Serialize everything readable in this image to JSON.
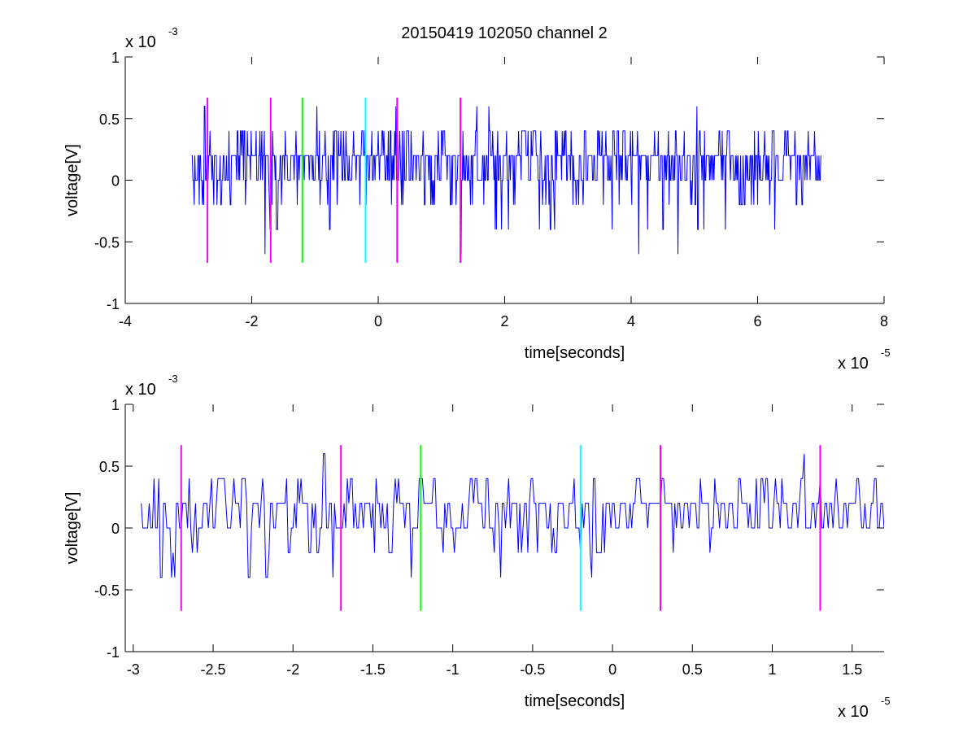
{
  "figure": {
    "title": "20150419 102050 channel 2"
  },
  "chart_data": [
    {
      "type": "line",
      "title": "20150419 102050 channel 2",
      "xlabel": "time[seconds]",
      "ylabel": "voltage[V]",
      "x_exponent_base": "x 10",
      "x_exponent_power": "-5",
      "y_exponent_base": "x 10",
      "y_exponent_power": "-3",
      "xlim": [
        -4e-05,
        8e-05
      ],
      "ylim": [
        -0.001,
        0.001
      ],
      "x_ticks": [
        -4e-05,
        -2e-05,
        0,
        2e-05,
        4e-05,
        6e-05,
        8e-05
      ],
      "x_tick_labels": [
        "-4",
        "-2",
        "0",
        "2",
        "4",
        "6",
        "8"
      ],
      "y_ticks": [
        -0.001,
        -0.0005,
        0,
        0.0005,
        0.001
      ],
      "y_tick_labels": [
        "-1",
        "-0.5",
        "0",
        "0.5",
        "1"
      ],
      "grid": false,
      "trace": {
        "color": "#0000ff",
        "x_start": -2.95e-05,
        "x_end": 7e-05,
        "levels_mV": [
          -0.6,
          -0.4,
          -0.2,
          0,
          0.2,
          0.4,
          0.6
        ],
        "typical_level_mV": 0.2
      },
      "markers": [
        {
          "x": -2.7e-05,
          "color": "#ff00ff",
          "y_range": [
            -0.00067,
            0.00067
          ]
        },
        {
          "x": -1.7e-05,
          "color": "#ff00ff",
          "y_range": [
            -0.00067,
            0.00067
          ]
        },
        {
          "x": -1.2e-05,
          "color": "#00ff00",
          "y_range": [
            -0.00067,
            0.00067
          ]
        },
        {
          "x": -2e-06,
          "color": "#00ffff",
          "y_range": [
            -0.00067,
            0.00067
          ]
        },
        {
          "x": 3e-06,
          "color": "#ff00ff",
          "y_range": [
            -0.00067,
            0.00067
          ]
        },
        {
          "x": 1.3e-05,
          "color": "#ff00ff",
          "y_range": [
            -0.00067,
            0.00067
          ]
        }
      ]
    },
    {
      "type": "line",
      "title": "",
      "xlabel": "time[seconds]",
      "ylabel": "voltage[V]",
      "x_exponent_base": "x 10",
      "x_exponent_power": "-5",
      "y_exponent_base": "x 10",
      "y_exponent_power": "-3",
      "xlim": [
        -3.05e-05,
        1.7e-05
      ],
      "ylim": [
        -0.001,
        0.001
      ],
      "x_ticks": [
        -3e-05,
        -2.5e-05,
        -2e-05,
        -1.5e-05,
        -1e-05,
        -5e-06,
        0,
        5e-06,
        1e-05,
        1.5e-05
      ],
      "x_tick_labels": [
        "-3",
        "-2.5",
        "-2",
        "-1.5",
        "-1",
        "-0.5",
        "0",
        "0.5",
        "1",
        "1.5"
      ],
      "y_ticks": [
        -0.001,
        -0.0005,
        0,
        0.0005,
        0.001
      ],
      "y_tick_labels": [
        "-1",
        "-0.5",
        "0",
        "0.5",
        "1"
      ],
      "grid": false,
      "trace": {
        "color": "#0000ff",
        "x_start": -2.95e-05,
        "x_end": 1.7e-05,
        "levels_mV": [
          -0.6,
          -0.4,
          -0.2,
          0,
          0.2,
          0.4,
          0.6
        ],
        "typical_level_mV": 0.2
      },
      "markers": [
        {
          "x": -2.7e-05,
          "color": "#ff00ff",
          "y_range": [
            -0.00067,
            0.00067
          ]
        },
        {
          "x": -1.7e-05,
          "color": "#ff00ff",
          "y_range": [
            -0.00067,
            0.00067
          ]
        },
        {
          "x": -1.2e-05,
          "color": "#00ff00",
          "y_range": [
            -0.00067,
            0.00067
          ]
        },
        {
          "x": -2e-06,
          "color": "#00ffff",
          "y_range": [
            -0.00067,
            0.00067
          ]
        },
        {
          "x": 3e-06,
          "color": "#ff00ff",
          "y_range": [
            -0.00067,
            0.00067
          ]
        },
        {
          "x": 1.3e-05,
          "color": "#ff00ff",
          "y_range": [
            -0.00067,
            0.00067
          ]
        }
      ]
    }
  ]
}
